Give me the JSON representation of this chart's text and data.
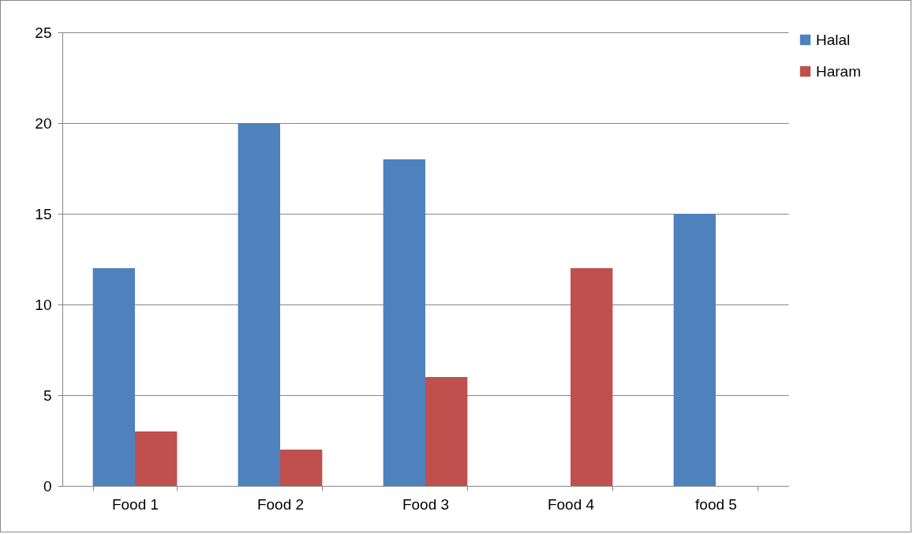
{
  "chart_data": {
    "type": "bar",
    "categories": [
      "Food 1",
      "Food 2",
      "Food 3",
      "Food 4",
      "food 5"
    ],
    "series": [
      {
        "name": "Halal",
        "color": "#4f81bd",
        "values": [
          12,
          20,
          18,
          0,
          15
        ]
      },
      {
        "name": "Haram",
        "color": "#c0504d",
        "values": [
          3,
          2,
          6,
          12,
          0
        ]
      }
    ],
    "ylim": [
      0,
      25
    ],
    "yticks": [
      0,
      5,
      10,
      15,
      20,
      25
    ],
    "grid": "y",
    "legend": "right"
  }
}
